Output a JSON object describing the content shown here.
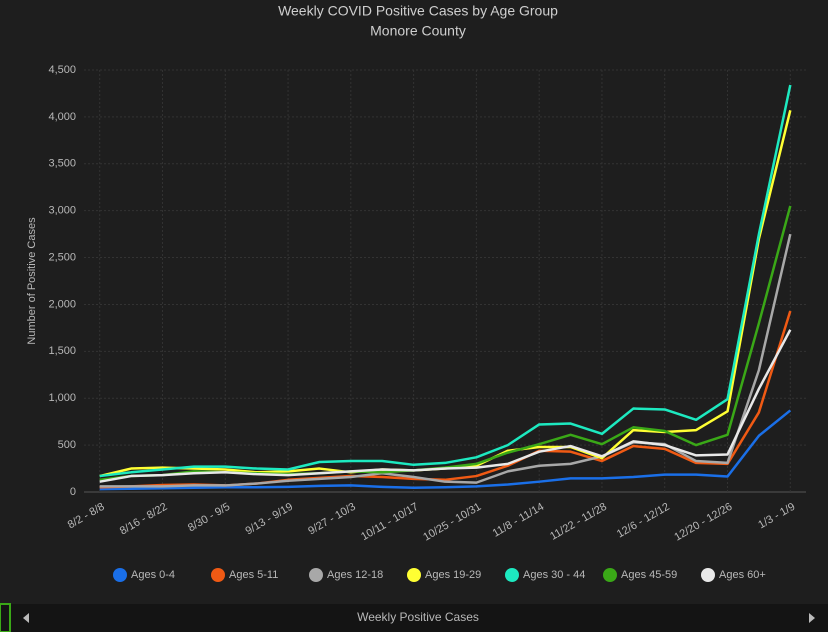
{
  "chart_data": {
    "type": "line",
    "title": "Weekly COVID Positive Cases by Age Group",
    "subtitle": "Monore County",
    "y_label": "Number of Positive Cases",
    "categories": [
      "8/2 - 8/8",
      null,
      "8/16 - 8/22",
      null,
      "8/30 - 9/5",
      null,
      "9/13 - 9/19",
      null,
      "9/27 - 10/3",
      null,
      "10/11 - 10/17",
      null,
      "10/25 - 10/31",
      null,
      "11/8 - 11/14",
      null,
      "11/22 - 11/28",
      null,
      "12/6 - 12/12",
      null,
      "12/20 - 12/26",
      null,
      "1/3 - 1/9"
    ],
    "ylim": [
      0,
      4500
    ],
    "yticks": [
      0,
      500,
      {
        "value": 1000,
        "label": "1,000"
      },
      {
        "value": 1500,
        "label": "1,500"
      },
      {
        "value": 2000,
        "label": "2,000"
      },
      {
        "value": 2500,
        "label": "2,500"
      },
      {
        "value": 3000,
        "label": "3,000"
      },
      {
        "value": 3500,
        "label": "3,500"
      },
      {
        "value": 4000,
        "label": "4,000"
      },
      {
        "value": 4500,
        "label": "4,500"
      }
    ],
    "grid": true,
    "legend": "bottom",
    "series": [
      {
        "name": "Ages 0-4",
        "color": "#1a6fe8",
        "values": [
          30,
          35,
          40,
          45,
          50,
          50,
          55,
          65,
          70,
          55,
          45,
          50,
          60,
          80,
          110,
          145,
          145,
          160,
          185,
          185,
          165,
          600,
          870
        ]
      },
      {
        "name": "Ages 5-11",
        "color": "#f05a14",
        "values": [
          50,
          60,
          75,
          80,
          70,
          90,
          130,
          150,
          170,
          160,
          140,
          130,
          170,
          280,
          440,
          430,
          330,
          490,
          460,
          310,
          300,
          850,
          1930
        ]
      },
      {
        "name": "Ages 12-18",
        "color": "#a8a8a8",
        "values": [
          60,
          60,
          60,
          70,
          70,
          90,
          120,
          140,
          160,
          200,
          160,
          110,
          100,
          220,
          280,
          300,
          380,
          530,
          510,
          330,
          310,
          1300,
          2750
        ]
      },
      {
        "name": "Ages 19-29",
        "color": "#ffff33",
        "values": [
          170,
          250,
          260,
          250,
          240,
          210,
          220,
          250,
          210,
          240,
          230,
          250,
          280,
          440,
          480,
          480,
          360,
          660,
          640,
          660,
          860,
          2700,
          4070
        ]
      },
      {
        "name": "Ages 30 - 44",
        "color": "#1de9c0",
        "values": [
          170,
          210,
          240,
          270,
          270,
          250,
          240,
          320,
          330,
          330,
          290,
          310,
          370,
          500,
          720,
          730,
          620,
          890,
          880,
          770,
          990,
          2750,
          4340
        ]
      },
      {
        "name": "Ages 45-59",
        "color": "#3aa817",
        "values": [
          130,
          170,
          180,
          220,
          210,
          200,
          190,
          200,
          220,
          210,
          230,
          260,
          300,
          420,
          510,
          610,
          510,
          690,
          650,
          500,
          610,
          1800,
          3050
        ]
      },
      {
        "name": "Ages 60+",
        "color": "#e8e8e8",
        "values": [
          110,
          170,
          180,
          200,
          210,
          190,
          180,
          200,
          220,
          240,
          230,
          250,
          260,
          300,
          430,
          490,
          380,
          540,
          500,
          390,
          400,
          1100,
          1730
        ]
      }
    ]
  },
  "footer": {
    "label": "Weekly Positive Cases"
  }
}
